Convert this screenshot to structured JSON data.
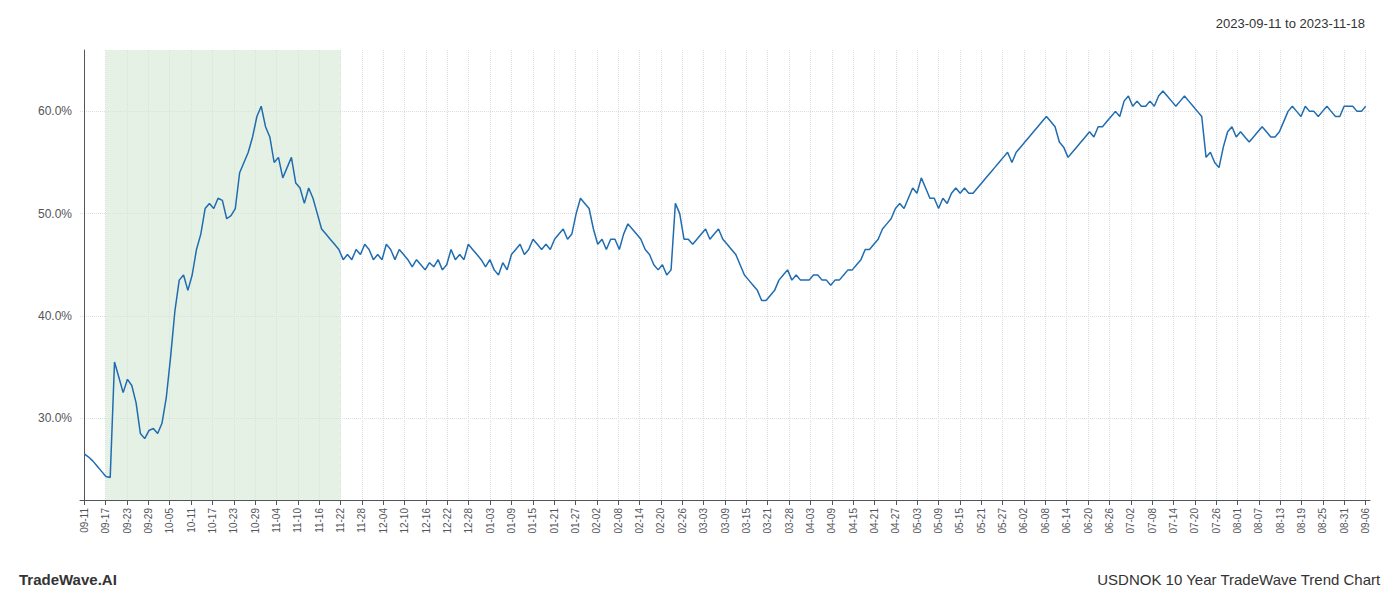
{
  "chart_data": {
    "type": "line",
    "title": "USDNOK 10 Year TradeWave Trend Chart",
    "subtitle": "2023-09-11 to 2023-11-18",
    "annotations": [
      "TradeWave.AI"
    ],
    "color": "#1f6cb0",
    "grid": true,
    "ylim": [
      22.0,
      66.0
    ],
    "yticks": [
      {
        "value": 30.0,
        "label": "30.0%"
      },
      {
        "value": 40.0,
        "label": "40.0%"
      },
      {
        "value": 50.0,
        "label": "50.0%"
      },
      {
        "value": 60.0,
        "label": "60.0%"
      }
    ],
    "xlim": [
      -1,
      298
    ],
    "xticks": [
      {
        "value": 0,
        "label": "09-11"
      },
      {
        "value": 4.95,
        "label": "09-17"
      },
      {
        "value": 9.9,
        "label": "09-23"
      },
      {
        "value": 14.85,
        "label": "09-29"
      },
      {
        "value": 19.8,
        "label": "10-05"
      },
      {
        "value": 24.75,
        "label": "10-11"
      },
      {
        "value": 29.7,
        "label": "10-17"
      },
      {
        "value": 34.65,
        "label": "10-23"
      },
      {
        "value": 39.6,
        "label": "10-29"
      },
      {
        "value": 44.55,
        "label": "11-04"
      },
      {
        "value": 49.5,
        "label": "11-10"
      },
      {
        "value": 54.45,
        "label": "11-16"
      },
      {
        "value": 59.4,
        "label": "11-22"
      },
      {
        "value": 64.35,
        "label": "11-28"
      },
      {
        "value": 69.3,
        "label": "12-04"
      },
      {
        "value": 74.25,
        "label": "12-10"
      },
      {
        "value": 79.2,
        "label": "12-16"
      },
      {
        "value": 84.15,
        "label": "12-22"
      },
      {
        "value": 89.1,
        "label": "12-28"
      },
      {
        "value": 94.05,
        "label": "01-03"
      },
      {
        "value": 99,
        "label": "01-09"
      },
      {
        "value": 103.95,
        "label": "01-15"
      },
      {
        "value": 108.9,
        "label": "01-21"
      },
      {
        "value": 113.85,
        "label": "01-27"
      },
      {
        "value": 118.8,
        "label": "02-02"
      },
      {
        "value": 123.75,
        "label": "02-08"
      },
      {
        "value": 128.7,
        "label": "02-14"
      },
      {
        "value": 133.65,
        "label": "02-20"
      },
      {
        "value": 138.6,
        "label": "02-26"
      },
      {
        "value": 143.55,
        "label": "03-03"
      },
      {
        "value": 148.5,
        "label": "03-09"
      },
      {
        "value": 153.45,
        "label": "03-15"
      },
      {
        "value": 158.4,
        "label": "03-21"
      },
      {
        "value": 163.35,
        "label": "03-28"
      },
      {
        "value": 168.3,
        "label": "04-03"
      },
      {
        "value": 173.25,
        "label": "04-09"
      },
      {
        "value": 178.2,
        "label": "04-15"
      },
      {
        "value": 183.15,
        "label": "04-21"
      },
      {
        "value": 188.1,
        "label": "04-27"
      },
      {
        "value": 193.05,
        "label": "05-03"
      },
      {
        "value": 198,
        "label": "05-09"
      },
      {
        "value": 202.95,
        "label": "05-15"
      },
      {
        "value": 207.9,
        "label": "05-21"
      },
      {
        "value": 212.85,
        "label": "05-27"
      },
      {
        "value": 217.8,
        "label": "06-02"
      },
      {
        "value": 222.75,
        "label": "06-08"
      },
      {
        "value": 227.7,
        "label": "06-14"
      },
      {
        "value": 232.65,
        "label": "06-20"
      },
      {
        "value": 237.6,
        "label": "06-26"
      },
      {
        "value": 242.55,
        "label": "07-02"
      },
      {
        "value": 247.5,
        "label": "07-08"
      },
      {
        "value": 252.45,
        "label": "07-14"
      },
      {
        "value": 257.4,
        "label": "07-20"
      },
      {
        "value": 262.35,
        "label": "07-26"
      },
      {
        "value": 267.3,
        "label": "08-01"
      },
      {
        "value": 272.25,
        "label": "08-07"
      },
      {
        "value": 277.2,
        "label": "08-13"
      },
      {
        "value": 282.15,
        "label": "08-19"
      },
      {
        "value": 287.1,
        "label": "08-25"
      },
      {
        "value": 292.05,
        "label": "08-31"
      },
      {
        "value": 297,
        "label": "09-06"
      }
    ],
    "shade": {
      "x_start": "09-17",
      "x_end": "11-22",
      "color": "#d6e8d4"
    },
    "values": [
      26.5,
      26.2,
      25.8,
      25.3,
      24.8,
      24.3,
      24.2,
      35.5,
      34.0,
      32.5,
      33.8,
      33.2,
      31.5,
      28.5,
      28.0,
      28.8,
      29.0,
      28.5,
      29.5,
      32.0,
      36.0,
      40.5,
      43.5,
      44.0,
      42.5,
      44.0,
      46.5,
      48.0,
      50.5,
      51.0,
      50.5,
      51.5,
      51.3,
      49.5,
      49.8,
      50.5,
      54.0,
      55.0,
      56.0,
      57.5,
      59.5,
      60.5,
      58.5,
      57.5,
      55.0,
      55.5,
      53.5,
      54.5,
      55.5,
      53.0,
      52.5,
      51.0,
      52.5,
      51.5,
      50.0,
      48.5,
      48.0,
      47.5,
      47.0,
      46.5,
      45.5,
      46.0,
      45.5,
      46.5,
      46.0,
      47.0,
      46.5,
      45.5,
      46.0,
      45.5,
      47.0,
      46.5,
      45.5,
      46.5,
      46.0,
      45.5,
      44.8,
      45.5,
      45.0,
      44.5,
      45.2,
      44.8,
      45.5,
      44.5,
      45.0,
      46.5,
      45.5,
      46.0,
      45.5,
      47.0,
      46.5,
      46.0,
      45.5,
      44.8,
      45.5,
      44.5,
      44.0,
      45.2,
      44.5,
      46.0,
      46.5,
      47.0,
      46.0,
      46.5,
      47.5,
      47.0,
      46.5,
      47.0,
      46.5,
      47.5,
      48.0,
      48.5,
      47.5,
      48.0,
      50.0,
      51.5,
      51.0,
      50.5,
      48.5,
      47.0,
      47.5,
      46.5,
      47.5,
      47.5,
      46.5,
      48.0,
      49.0,
      48.5,
      48.0,
      47.5,
      46.5,
      46.0,
      45.0,
      44.5,
      45.0,
      44.0,
      44.5,
      51.0,
      50.0,
      47.5,
      47.5,
      47.0,
      47.5,
      48.0,
      48.5,
      47.5,
      48.0,
      48.5,
      47.5,
      47.0,
      46.5,
      46.0,
      45.0,
      44.0,
      43.5,
      43.0,
      42.5,
      41.5,
      41.5,
      42.0,
      42.5,
      43.5,
      44.0,
      44.5,
      43.5,
      44.0,
      43.5,
      43.5,
      43.5,
      44.0,
      44.0,
      43.5,
      43.5,
      43.0,
      43.5,
      43.5,
      44.0,
      44.5,
      44.5,
      45.0,
      45.5,
      46.5,
      46.5,
      47.0,
      47.5,
      48.5,
      49.0,
      49.5,
      50.5,
      51.0,
      50.5,
      51.5,
      52.5,
      52.0,
      53.5,
      52.5,
      51.5,
      51.5,
      50.5,
      51.5,
      51.0,
      52.0,
      52.5,
      52.0,
      52.5,
      52.0,
      52.0,
      52.5,
      53.0,
      53.5,
      54.0,
      54.5,
      55.0,
      55.5,
      56.0,
      55.0,
      56.0,
      56.5,
      57.0,
      57.5,
      58.0,
      58.5,
      59.0,
      59.5,
      59.0,
      58.5,
      57.0,
      56.5,
      55.5,
      56.0,
      56.5,
      57.0,
      57.5,
      58.0,
      57.5,
      58.5,
      58.5,
      59.0,
      59.5,
      60.0,
      59.5,
      61.0,
      61.5,
      60.5,
      61.0,
      60.5,
      60.5,
      61.0,
      60.5,
      61.5,
      62.0,
      61.5,
      61.0,
      60.5,
      61.0,
      61.5,
      61.0,
      60.5,
      60.0,
      59.5,
      55.5,
      56.0,
      55.0,
      54.5,
      56.5,
      58.0,
      58.5,
      57.5,
      58.0,
      57.5,
      57.0,
      57.5,
      58.0,
      58.5,
      58.0,
      57.5,
      57.5,
      58.0,
      59.0,
      60.0,
      60.5,
      60.0,
      59.5,
      60.5,
      60.0,
      60.0,
      59.5,
      60.0,
      60.5,
      60.0,
      59.5,
      59.5,
      60.5,
      60.5,
      60.5,
      60.0,
      60.0,
      60.5
    ]
  }
}
